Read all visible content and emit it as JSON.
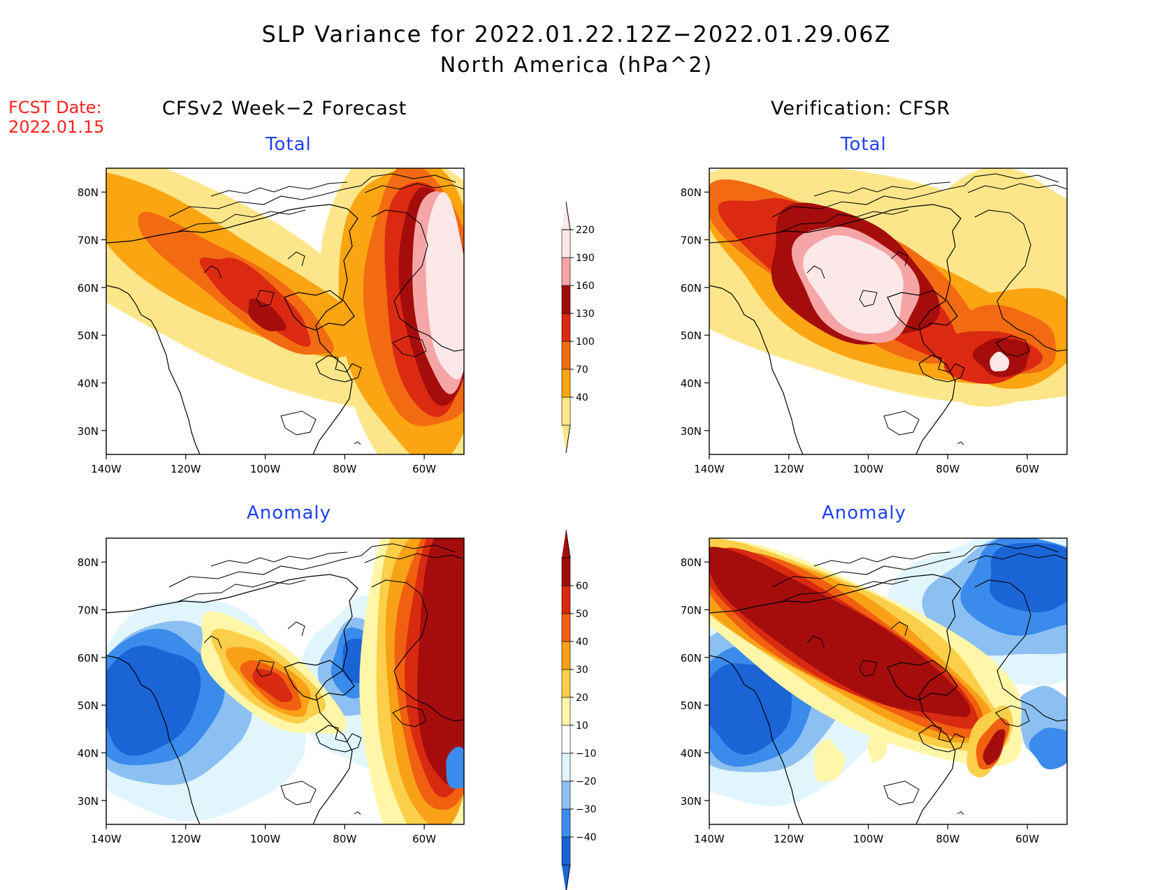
{
  "title": {
    "line1": "SLP Variance for 2022.01.22.12Z−2022.01.29.06Z",
    "line2": "North America (hPa^2)"
  },
  "fcst": {
    "label": "FCST Date:",
    "date": "2022.01.15"
  },
  "columns": {
    "forecast": "CFSv2 Week−2 Forecast",
    "verification": "Verification: CFSR"
  },
  "panels": [
    {
      "id": "fcst-total",
      "title": "Total"
    },
    {
      "id": "verif-total",
      "title": "Total"
    },
    {
      "id": "fcst-anomaly",
      "title": "Anomaly"
    },
    {
      "id": "verif-anomaly",
      "title": "Anomaly"
    }
  ],
  "axes": {
    "lon_labels": [
      "140W",
      "120W",
      "100W",
      "80W",
      "60W"
    ],
    "lon_values": [
      -140,
      -120,
      -100,
      -80,
      -60
    ],
    "lat_labels": [
      "80N",
      "70N",
      "60N",
      "50N",
      "40N",
      "30N"
    ],
    "lat_values": [
      80,
      70,
      60,
      50,
      40,
      30
    ],
    "lon_range": [
      -140,
      -50
    ],
    "lat_range": [
      25,
      85
    ]
  },
  "colorbars": {
    "total": {
      "labels": [
        "40",
        "70",
        "100",
        "130",
        "160",
        "190",
        "220"
      ],
      "colors": [
        "#fde68a",
        "#fca512",
        "#f26b12",
        "#dc2a12",
        "#a50d0d",
        "#f5a5a5",
        "#fce8e8"
      ]
    },
    "anomaly": {
      "labels": [
        "−40",
        "−30",
        "−20",
        "−10",
        "10",
        "20",
        "30",
        "40",
        "50",
        "60"
      ],
      "colors": [
        "#1a64d6",
        "#3b8bed",
        "#8cc0f2",
        "#e1f5fd",
        "#ffffff",
        "#fff6a8",
        "#fccf4a",
        "#f9a116",
        "#f06010",
        "#d82a10",
        "#a50d0d"
      ]
    }
  },
  "colors": {
    "title_blue": "#1f3fff",
    "fcst_red": "#ff2020"
  }
}
